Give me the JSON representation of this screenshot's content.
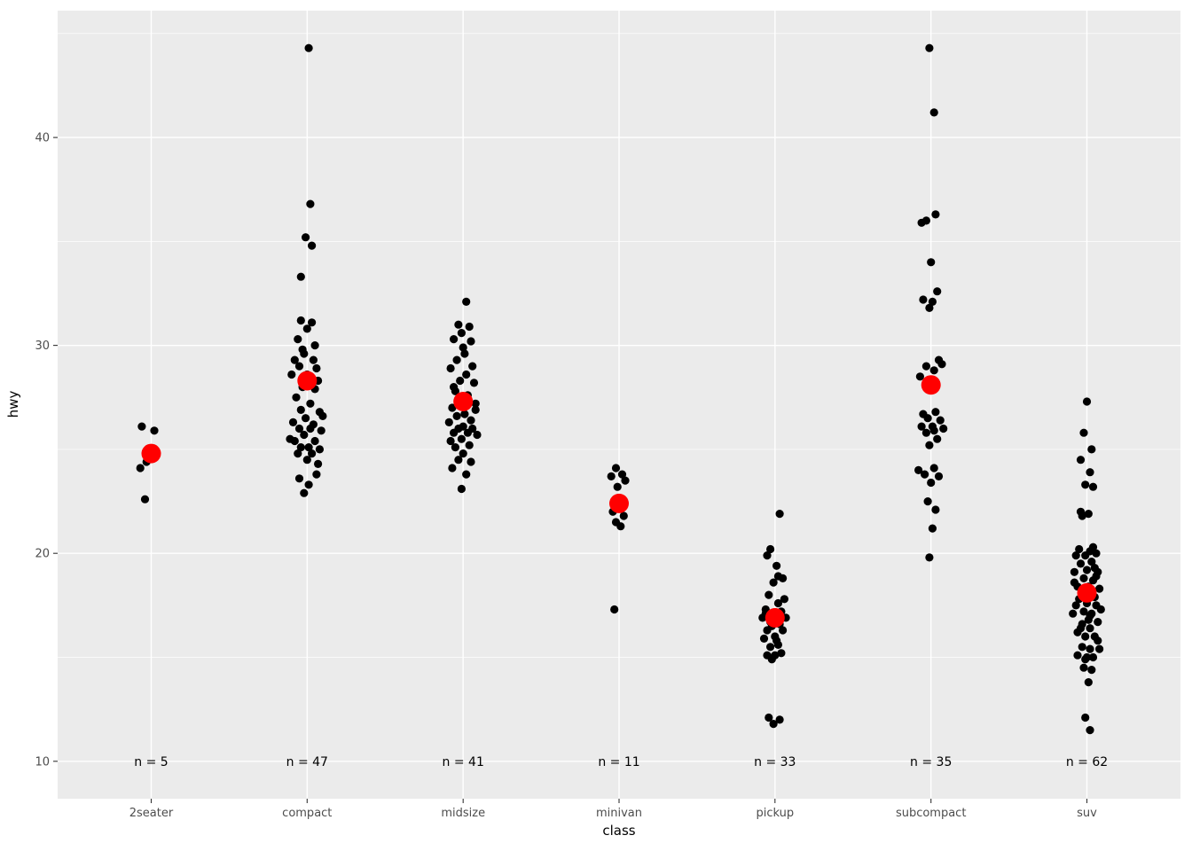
{
  "chart_data": {
    "type": "scatter",
    "variant": "jitter-strip",
    "title": "",
    "xlabel": "class",
    "ylabel": "hwy",
    "categories": [
      "2seater",
      "compact",
      "midsize",
      "minivan",
      "pickup",
      "subcompact",
      "suv"
    ],
    "counts": [
      5,
      47,
      41,
      11,
      33,
      35,
      62
    ],
    "n_labels": [
      "n = 5",
      "n = 47",
      "n = 41",
      "n = 11",
      "n = 33",
      "n = 35",
      "n = 62"
    ],
    "n_label_y": 10,
    "means": [
      24.8,
      28.3,
      27.3,
      22.4,
      16.9,
      28.1,
      18.1
    ],
    "y_ticks": [
      10,
      20,
      30,
      40
    ],
    "y_minor_ticks": [
      15,
      25,
      35,
      45
    ],
    "ylim": [
      8.2,
      46.1
    ],
    "legend": "none",
    "grid": "on",
    "colors": {
      "panel_bg": "#EBEBEB",
      "grid": "#FFFFFF",
      "point": "#000000",
      "mean_point": "#FF0000",
      "axis_text": "#4D4D4D",
      "tick_mark": "#333333",
      "label_text": "#000000"
    },
    "series": [
      {
        "name": "2seater",
        "points": [
          [
            -0.06,
            26.1
          ],
          [
            0.02,
            25.9
          ],
          [
            -0.03,
            24.4
          ],
          [
            -0.07,
            24.1
          ],
          [
            -0.04,
            22.6
          ]
        ]
      },
      {
        "name": "compact",
        "points": [
          [
            0.01,
            44.3
          ],
          [
            0.02,
            36.8
          ],
          [
            -0.01,
            35.2
          ],
          [
            0.03,
            34.8
          ],
          [
            -0.04,
            33.3
          ],
          [
            -0.04,
            31.2
          ],
          [
            0.03,
            31.1
          ],
          [
            0.0,
            30.8
          ],
          [
            -0.06,
            30.3
          ],
          [
            0.05,
            30.0
          ],
          [
            -0.03,
            29.8
          ],
          [
            -0.02,
            29.6
          ],
          [
            -0.08,
            29.3
          ],
          [
            0.04,
            29.3
          ],
          [
            -0.05,
            29.0
          ],
          [
            0.06,
            28.9
          ],
          [
            -0.1,
            28.6
          ],
          [
            0.0,
            28.6
          ],
          [
            0.07,
            28.3
          ],
          [
            -0.03,
            28.0
          ],
          [
            0.05,
            27.9
          ],
          [
            -0.07,
            27.5
          ],
          [
            0.02,
            27.2
          ],
          [
            -0.04,
            26.9
          ],
          [
            0.08,
            26.8
          ],
          [
            0.1,
            26.6
          ],
          [
            -0.01,
            26.5
          ],
          [
            -0.09,
            26.3
          ],
          [
            0.04,
            26.2
          ],
          [
            -0.05,
            26.0
          ],
          [
            0.02,
            26.0
          ],
          [
            0.09,
            25.9
          ],
          [
            -0.02,
            25.7
          ],
          [
            -0.11,
            25.5
          ],
          [
            -0.08,
            25.4
          ],
          [
            0.05,
            25.4
          ],
          [
            -0.04,
            25.1
          ],
          [
            0.01,
            25.1
          ],
          [
            0.08,
            25.0
          ],
          [
            -0.06,
            24.8
          ],
          [
            0.03,
            24.8
          ],
          [
            0.0,
            24.5
          ],
          [
            0.07,
            24.3
          ],
          [
            0.06,
            23.8
          ],
          [
            -0.05,
            23.6
          ],
          [
            0.01,
            23.3
          ],
          [
            -0.02,
            22.9
          ]
        ]
      },
      {
        "name": "midsize",
        "points": [
          [
            0.02,
            32.1
          ],
          [
            -0.03,
            31.0
          ],
          [
            0.04,
            30.9
          ],
          [
            -0.01,
            30.6
          ],
          [
            -0.06,
            30.3
          ],
          [
            0.05,
            30.2
          ],
          [
            0.0,
            29.9
          ],
          [
            0.01,
            29.6
          ],
          [
            -0.04,
            29.3
          ],
          [
            0.06,
            29.0
          ],
          [
            -0.08,
            28.9
          ],
          [
            0.02,
            28.6
          ],
          [
            -0.02,
            28.3
          ],
          [
            0.07,
            28.2
          ],
          [
            -0.06,
            28.0
          ],
          [
            -0.05,
            27.8
          ],
          [
            0.03,
            27.6
          ],
          [
            -0.01,
            27.3
          ],
          [
            0.08,
            27.2
          ],
          [
            -0.07,
            27.0
          ],
          [
            0.08,
            26.9
          ],
          [
            0.01,
            26.7
          ],
          [
            -0.04,
            26.6
          ],
          [
            0.05,
            26.4
          ],
          [
            -0.09,
            26.3
          ],
          [
            0.0,
            26.1
          ],
          [
            0.06,
            26.0
          ],
          [
            -0.03,
            26.0
          ],
          [
            -0.06,
            25.8
          ],
          [
            0.03,
            25.8
          ],
          [
            0.09,
            25.7
          ],
          [
            -0.01,
            25.5
          ],
          [
            -0.08,
            25.4
          ],
          [
            0.04,
            25.2
          ],
          [
            -0.05,
            25.1
          ],
          [
            0.0,
            24.8
          ],
          [
            -0.03,
            24.5
          ],
          [
            0.05,
            24.4
          ],
          [
            -0.07,
            24.1
          ],
          [
            0.02,
            23.8
          ],
          [
            -0.01,
            23.1
          ]
        ]
      },
      {
        "name": "minivan",
        "points": [
          [
            -0.02,
            24.1
          ],
          [
            0.02,
            23.8
          ],
          [
            -0.05,
            23.7
          ],
          [
            0.04,
            23.5
          ],
          [
            -0.01,
            23.2
          ],
          [
            0.0,
            22.3
          ],
          [
            -0.04,
            22.0
          ],
          [
            0.03,
            21.8
          ],
          [
            -0.02,
            21.5
          ],
          [
            0.01,
            21.3
          ],
          [
            -0.03,
            17.3
          ]
        ]
      },
      {
        "name": "pickup",
        "points": [
          [
            0.03,
            21.9
          ],
          [
            -0.03,
            20.2
          ],
          [
            -0.05,
            19.9
          ],
          [
            0.01,
            19.4
          ],
          [
            0.02,
            18.9
          ],
          [
            0.05,
            18.8
          ],
          [
            -0.01,
            18.6
          ],
          [
            -0.04,
            18.0
          ],
          [
            0.06,
            17.8
          ],
          [
            0.02,
            17.6
          ],
          [
            -0.06,
            17.3
          ],
          [
            0.04,
            17.2
          ],
          [
            -0.06,
            17.1
          ],
          [
            0.0,
            17.0
          ],
          [
            -0.08,
            16.9
          ],
          [
            0.07,
            16.9
          ],
          [
            -0.03,
            16.7
          ],
          [
            0.03,
            16.6
          ],
          [
            -0.02,
            16.5
          ],
          [
            -0.05,
            16.3
          ],
          [
            0.05,
            16.3
          ],
          [
            0.0,
            16.0
          ],
          [
            -0.07,
            15.9
          ],
          [
            0.01,
            15.8
          ],
          [
            0.02,
            15.6
          ],
          [
            -0.03,
            15.5
          ],
          [
            0.04,
            15.2
          ],
          [
            -0.05,
            15.1
          ],
          [
            0.0,
            15.1
          ],
          [
            -0.02,
            14.9
          ],
          [
            -0.04,
            12.1
          ],
          [
            0.03,
            12.0
          ],
          [
            -0.01,
            11.8
          ]
        ]
      },
      {
        "name": "subcompact",
        "points": [
          [
            -0.01,
            44.3
          ],
          [
            0.02,
            41.2
          ],
          [
            0.03,
            36.3
          ],
          [
            -0.03,
            36.0
          ],
          [
            -0.06,
            35.9
          ],
          [
            0.0,
            34.0
          ],
          [
            0.04,
            32.6
          ],
          [
            -0.05,
            32.2
          ],
          [
            0.01,
            32.1
          ],
          [
            -0.01,
            31.8
          ],
          [
            0.05,
            29.3
          ],
          [
            0.07,
            29.1
          ],
          [
            -0.03,
            29.0
          ],
          [
            0.02,
            28.8
          ],
          [
            -0.07,
            28.5
          ],
          [
            0.03,
            26.8
          ],
          [
            -0.05,
            26.7
          ],
          [
            -0.02,
            26.5
          ],
          [
            0.06,
            26.4
          ],
          [
            -0.06,
            26.1
          ],
          [
            0.01,
            26.1
          ],
          [
            0.08,
            26.0
          ],
          [
            0.02,
            25.9
          ],
          [
            -0.03,
            25.8
          ],
          [
            0.04,
            25.5
          ],
          [
            -0.01,
            25.2
          ],
          [
            0.02,
            24.1
          ],
          [
            -0.08,
            24.0
          ],
          [
            -0.04,
            23.8
          ],
          [
            0.05,
            23.7
          ],
          [
            0.0,
            23.4
          ],
          [
            -0.02,
            22.5
          ],
          [
            0.03,
            22.1
          ],
          [
            0.01,
            21.2
          ],
          [
            -0.01,
            19.8
          ]
        ]
      },
      {
        "name": "suv",
        "points": [
          [
            0.0,
            27.3
          ],
          [
            -0.02,
            25.8
          ],
          [
            0.03,
            25.0
          ],
          [
            -0.04,
            24.5
          ],
          [
            0.02,
            23.9
          ],
          [
            -0.01,
            23.3
          ],
          [
            0.04,
            23.2
          ],
          [
            -0.04,
            22.0
          ],
          [
            0.01,
            21.9
          ],
          [
            -0.03,
            21.8
          ],
          [
            0.04,
            20.3
          ],
          [
            -0.05,
            20.2
          ],
          [
            0.02,
            20.1
          ],
          [
            0.06,
            20.0
          ],
          [
            -0.01,
            19.9
          ],
          [
            -0.07,
            19.9
          ],
          [
            0.03,
            19.6
          ],
          [
            -0.04,
            19.5
          ],
          [
            0.05,
            19.3
          ],
          [
            0.0,
            19.2
          ],
          [
            0.07,
            19.1
          ],
          [
            -0.08,
            19.1
          ],
          [
            0.06,
            18.9
          ],
          [
            -0.02,
            18.8
          ],
          [
            0.04,
            18.7
          ],
          [
            -0.08,
            18.6
          ],
          [
            -0.06,
            18.4
          ],
          [
            0.01,
            18.4
          ],
          [
            0.08,
            18.3
          ],
          [
            0.0,
            18.2
          ],
          [
            -0.03,
            18.0
          ],
          [
            0.05,
            17.9
          ],
          [
            -0.05,
            17.8
          ],
          [
            0.0,
            17.6
          ],
          [
            -0.07,
            17.5
          ],
          [
            0.06,
            17.5
          ],
          [
            0.09,
            17.3
          ],
          [
            -0.02,
            17.2
          ],
          [
            0.03,
            17.1
          ],
          [
            -0.09,
            17.1
          ],
          [
            0.02,
            17.0
          ],
          [
            0.01,
            16.8
          ],
          [
            0.07,
            16.7
          ],
          [
            -0.03,
            16.6
          ],
          [
            -0.04,
            16.4
          ],
          [
            0.02,
            16.4
          ],
          [
            -0.06,
            16.2
          ],
          [
            -0.01,
            16.0
          ],
          [
            0.05,
            16.0
          ],
          [
            -0.03,
            15.5
          ],
          [
            0.02,
            15.4
          ],
          [
            0.08,
            15.4
          ],
          [
            -0.06,
            15.1
          ],
          [
            0.0,
            15.0
          ],
          [
            0.04,
            15.0
          ],
          [
            -0.01,
            14.9
          ],
          [
            -0.02,
            14.5
          ],
          [
            0.03,
            14.4
          ],
          [
            0.01,
            13.8
          ],
          [
            -0.01,
            12.1
          ],
          [
            0.02,
            11.5
          ],
          [
            0.07,
            15.8
          ]
        ]
      }
    ]
  }
}
